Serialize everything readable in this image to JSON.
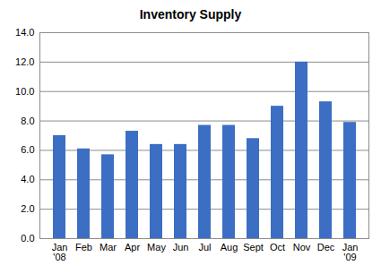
{
  "chart_data": {
    "type": "bar",
    "title": "Inventory Supply",
    "categories": [
      "Jan\n'08",
      "Feb",
      "Mar",
      "Apr",
      "May",
      "Jun",
      "Jul",
      "Aug",
      "Sept",
      "Oct",
      "Nov",
      "Dec",
      "Jan\n'09"
    ],
    "values": [
      7.0,
      6.1,
      5.7,
      7.3,
      6.4,
      6.4,
      7.7,
      7.7,
      6.8,
      9.0,
      12.0,
      9.3,
      7.9
    ],
    "color": "#3c6ec4",
    "ylim": [
      0,
      14
    ],
    "yticks": [
      {
        "value": 0,
        "label": "0.0"
      },
      {
        "value": 2,
        "label": "2.0"
      },
      {
        "value": 4,
        "label": "4.0"
      },
      {
        "value": 6,
        "label": "6.0"
      },
      {
        "value": 8,
        "label": "8.0"
      },
      {
        "value": 10,
        "label": "10.0"
      },
      {
        "value": 12,
        "label": "12.0"
      },
      {
        "value": 14,
        "label": "14.0"
      }
    ],
    "grid": true
  }
}
